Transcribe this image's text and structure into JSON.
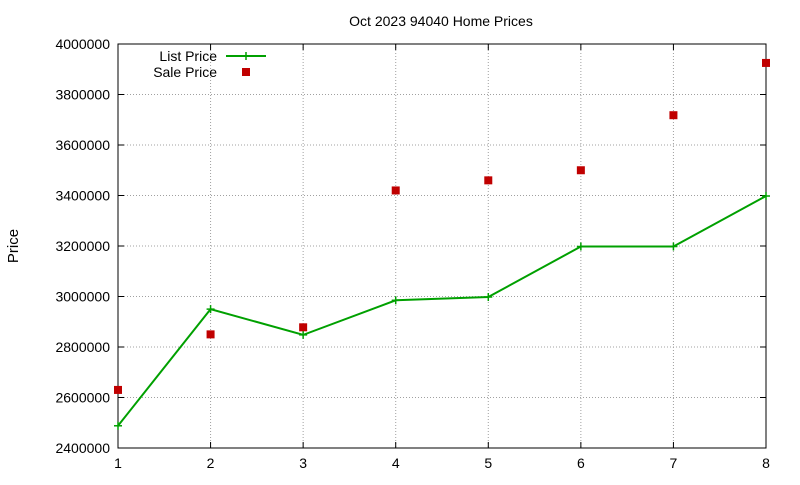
{
  "chart_data": {
    "type": "line",
    "title": "Oct 2023 94040 Home Prices",
    "xlabel": "",
    "ylabel": "Price",
    "xlim": [
      1,
      8
    ],
    "ylim": [
      2400000,
      4000000
    ],
    "x_ticks": [
      1,
      2,
      3,
      4,
      5,
      6,
      7,
      8
    ],
    "y_ticks": [
      2400000,
      2600000,
      2800000,
      3000000,
      3200000,
      3400000,
      3600000,
      3800000,
      4000000
    ],
    "x_tick_labels": [
      "1",
      "2",
      "3",
      "4",
      "5",
      "6",
      "7",
      "8"
    ],
    "y_tick_labels": [
      "2400000",
      "2600000",
      "2800000",
      "3000000",
      "3200000",
      "3400000",
      "3600000",
      "3800000",
      "4000000"
    ],
    "grid": true,
    "legend_position": "top-left",
    "series": [
      {
        "name": "List Price",
        "style": "linespoints",
        "marker": "plus",
        "color": "#00a000",
        "x": [
          1,
          2,
          3,
          4,
          5,
          6,
          7,
          8
        ],
        "y": [
          2488000,
          2950000,
          2848000,
          2985000,
          2998000,
          3198000,
          3198000,
          3398000
        ]
      },
      {
        "name": "Sale Price",
        "style": "points",
        "marker": "square",
        "color": "#c00000",
        "x": [
          1,
          2,
          3,
          4,
          5,
          6,
          7,
          8
        ],
        "y": [
          2630000,
          2850000,
          2878000,
          3420000,
          3460000,
          3500000,
          3718000,
          3925000
        ]
      }
    ]
  }
}
